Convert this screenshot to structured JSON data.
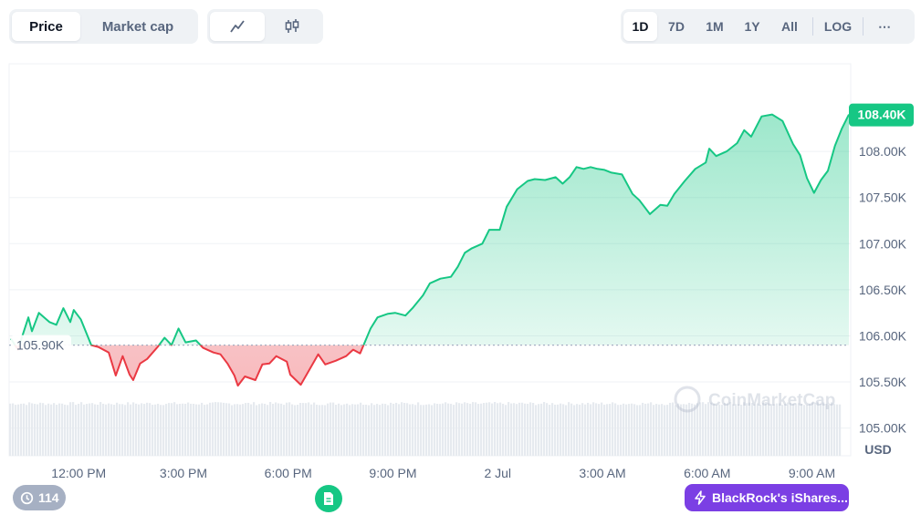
{
  "toolbar": {
    "type_tabs": [
      {
        "label": "Price",
        "active": true
      },
      {
        "label": "Market cap",
        "active": false
      }
    ],
    "view_icons": [
      "line-chart-icon",
      "candlestick-icon"
    ],
    "ranges": [
      "1D",
      "7D",
      "1M",
      "1Y",
      "All"
    ],
    "active_range": "1D",
    "log_label": "LOG",
    "more_label": "⋯"
  },
  "colors": {
    "up": "#16c784",
    "down": "#ea3943",
    "up_fill": "#16c784",
    "down_fill": "#ea3943",
    "grid": "#eff2f5",
    "badge_bg": "#16c784",
    "news_bg": "#7b3fe4"
  },
  "chart_data": {
    "type": "area",
    "grid": true,
    "baseline": 105900,
    "baseline_label": "105.90K",
    "current_label": "108.40K",
    "currency_label": "USD",
    "watermark": "CoinMarketCap",
    "ylim": [
      104700,
      108950
    ],
    "yticks": [
      {
        "value": 105000,
        "label": "105.00K"
      },
      {
        "value": 105500,
        "label": "105.50K"
      },
      {
        "value": 106000,
        "label": "106.00K"
      },
      {
        "value": 106500,
        "label": "106.50K"
      },
      {
        "value": 107000,
        "label": "107.00K"
      },
      {
        "value": 107500,
        "label": "107.50K"
      },
      {
        "value": 108000,
        "label": "108.00K"
      }
    ],
    "xlim": [
      0,
      24
    ],
    "xticks": [
      {
        "value": 1.0,
        "label": "12:00 PM"
      },
      {
        "value": 4.0,
        "label": "3:00 PM"
      },
      {
        "value": 7.0,
        "label": "6:00 PM"
      },
      {
        "value": 10.0,
        "label": "9:00 PM"
      },
      {
        "value": 13.0,
        "label": "2 Jul"
      },
      {
        "value": 16.0,
        "label": "3:00 AM"
      },
      {
        "value": 19.0,
        "label": "6:00 AM"
      },
      {
        "value": 22.0,
        "label": "9:00 AM"
      }
    ],
    "series": [
      {
        "x": [
          0,
          0.2,
          0.5,
          0.6,
          0.8,
          1.1,
          1.3,
          1.5,
          1.7,
          1.8,
          2.0,
          2.3,
          2.5,
          2.8,
          3.0,
          3.2,
          3.4,
          3.5,
          3.7,
          3.9,
          4.2,
          4.4,
          4.6,
          4.8,
          5.0,
          5.3,
          5.5,
          5.8,
          6.0,
          6.2,
          6.4,
          6.5,
          6.7,
          7.0,
          7.2,
          7.4,
          7.6,
          7.9,
          8.0,
          8.3,
          8.5,
          8.8,
          9.0,
          9.3,
          9.6,
          9.8,
          10.0,
          10.3,
          10.5,
          10.8,
          11.0,
          11.3,
          11.5,
          11.8,
          12.0,
          12.3,
          12.6,
          12.8,
          13.0,
          13.2,
          13.5,
          13.7,
          14.0,
          14.2,
          14.5,
          14.8,
          15.0,
          15.3,
          15.6,
          15.8,
          16.0,
          16.2,
          16.4,
          16.6,
          16.8,
          17.0,
          17.2,
          17.5,
          17.8,
          18.0,
          18.3,
          18.6,
          18.8,
          19.0,
          19.3,
          19.6,
          19.9,
          20.0,
          20.2,
          20.5,
          20.8,
          21.0,
          21.2,
          21.5,
          21.8,
          22.1,
          22.4,
          22.6,
          22.8,
          23.0,
          23.2,
          23.4,
          23.6,
          23.8,
          24.0
        ],
        "values": [
          105970,
          105850,
          106200,
          106050,
          106250,
          106150,
          106120,
          106300,
          106150,
          106280,
          106180,
          105900,
          105880,
          105820,
          105570,
          105780,
          105580,
          105520,
          105700,
          105750,
          105880,
          105980,
          105900,
          106080,
          105930,
          105950,
          105870,
          105820,
          105800,
          105700,
          105570,
          105460,
          105560,
          105520,
          105690,
          105700,
          105780,
          105720,
          105580,
          105470,
          105600,
          105800,
          105690,
          105730,
          105780,
          105850,
          105810,
          106080,
          106200,
          106240,
          106250,
          106220,
          106300,
          106440,
          106570,
          106620,
          106640,
          106750,
          106900,
          106950,
          107000,
          107150,
          107150,
          107400,
          107590,
          107680,
          107700,
          107690,
          107720,
          107650,
          107720,
          107830,
          107810,
          107830,
          107810,
          107800,
          107770,
          107750,
          107540,
          107470,
          107320,
          107420,
          107410,
          107540,
          107680,
          107810,
          107880,
          108030,
          107950,
          108000,
          108090,
          108230,
          108160,
          108380,
          108400,
          108330,
          108080,
          107960,
          107710,
          107550,
          107690,
          107790,
          108060,
          108250,
          108400
        ]
      }
    ],
    "annotations": {
      "event_count": "114",
      "news_label": "BlackRock's iShares..."
    }
  }
}
